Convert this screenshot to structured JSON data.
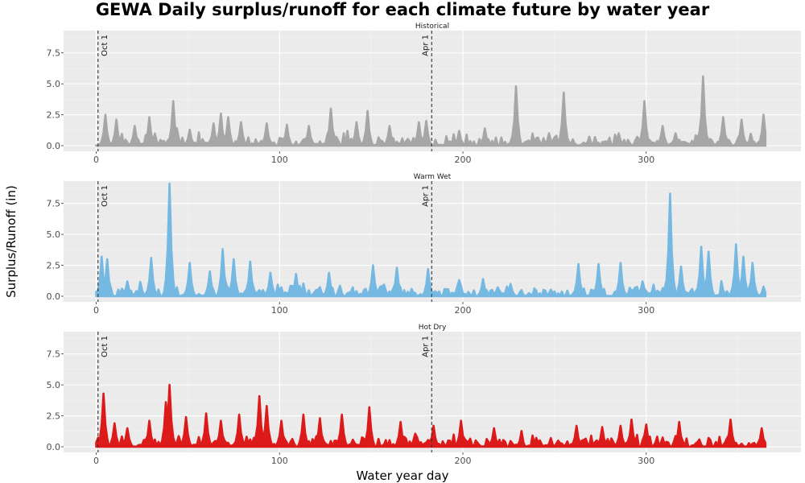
{
  "chart_data": {
    "type": "area",
    "title": "GEWA Daily surplus/runoff for each climate future by water year",
    "xlabel": "Water year day",
    "ylabel": "Surplus/Runoff (in)",
    "xlim": [
      0,
      366
    ],
    "ylim": [
      0,
      9.3
    ],
    "x_ticks": [
      0,
      100,
      200,
      300
    ],
    "y_ticks": [
      0.0,
      2.5,
      5.0,
      7.5
    ],
    "grid": true,
    "reference_lines": [
      {
        "x": 1,
        "label": "Oct 1"
      },
      {
        "x": 183,
        "label": "Apr 1"
      }
    ],
    "panels": [
      {
        "name": "Historical",
        "color": "#a6a6a6",
        "peaks": [
          {
            "x": 5,
            "y": 2.5
          },
          {
            "x": 11,
            "y": 2.1
          },
          {
            "x": 21,
            "y": 1.6
          },
          {
            "x": 29,
            "y": 2.3
          },
          {
            "x": 42,
            "y": 3.6
          },
          {
            "x": 51,
            "y": 1.3
          },
          {
            "x": 64,
            "y": 1.8
          },
          {
            "x": 68,
            "y": 2.6
          },
          {
            "x": 72,
            "y": 2.3
          },
          {
            "x": 79,
            "y": 1.9
          },
          {
            "x": 93,
            "y": 1.8
          },
          {
            "x": 104,
            "y": 1.7
          },
          {
            "x": 116,
            "y": 1.6
          },
          {
            "x": 128,
            "y": 3.0
          },
          {
            "x": 142,
            "y": 1.9
          },
          {
            "x": 148,
            "y": 2.8
          },
          {
            "x": 160,
            "y": 1.6
          },
          {
            "x": 176,
            "y": 1.9
          },
          {
            "x": 180,
            "y": 2.0
          },
          {
            "x": 198,
            "y": 1.2
          },
          {
            "x": 212,
            "y": 1.4
          },
          {
            "x": 229,
            "y": 4.8
          },
          {
            "x": 247,
            "y": 1.0
          },
          {
            "x": 255,
            "y": 4.3
          },
          {
            "x": 285,
            "y": 1.0
          },
          {
            "x": 299,
            "y": 3.6
          },
          {
            "x": 309,
            "y": 1.6
          },
          {
            "x": 316,
            "y": 1.0
          },
          {
            "x": 331,
            "y": 5.6
          },
          {
            "x": 342,
            "y": 2.3
          },
          {
            "x": 352,
            "y": 2.1
          },
          {
            "x": 364,
            "y": 2.5
          }
        ]
      },
      {
        "name": "Warm Wet",
        "color": "#75b8e2",
        "peaks": [
          {
            "x": 3,
            "y": 3.2
          },
          {
            "x": 6,
            "y": 3.0
          },
          {
            "x": 17,
            "y": 1.2
          },
          {
            "x": 30,
            "y": 3.1
          },
          {
            "x": 40,
            "y": 9.1
          },
          {
            "x": 51,
            "y": 2.7
          },
          {
            "x": 62,
            "y": 2.0
          },
          {
            "x": 69,
            "y": 3.8
          },
          {
            "x": 75,
            "y": 3.0
          },
          {
            "x": 84,
            "y": 2.8
          },
          {
            "x": 95,
            "y": 1.9
          },
          {
            "x": 109,
            "y": 1.8
          },
          {
            "x": 127,
            "y": 1.9
          },
          {
            "x": 151,
            "y": 2.5
          },
          {
            "x": 164,
            "y": 2.3
          },
          {
            "x": 181,
            "y": 2.2
          },
          {
            "x": 198,
            "y": 1.3
          },
          {
            "x": 211,
            "y": 1.4
          },
          {
            "x": 226,
            "y": 1.0
          },
          {
            "x": 263,
            "y": 2.6
          },
          {
            "x": 274,
            "y": 2.6
          },
          {
            "x": 286,
            "y": 2.7
          },
          {
            "x": 298,
            "y": 1.2
          },
          {
            "x": 313,
            "y": 8.3
          },
          {
            "x": 319,
            "y": 2.4
          },
          {
            "x": 330,
            "y": 4.0
          },
          {
            "x": 334,
            "y": 3.6
          },
          {
            "x": 349,
            "y": 4.2
          },
          {
            "x": 353,
            "y": 3.2
          },
          {
            "x": 358,
            "y": 2.7
          },
          {
            "x": 364,
            "y": 0.6
          }
        ]
      },
      {
        "name": "Hot Dry",
        "color": "#dd1a1a",
        "peaks": [
          {
            "x": 4,
            "y": 4.3
          },
          {
            "x": 10,
            "y": 1.9
          },
          {
            "x": 17,
            "y": 1.5
          },
          {
            "x": 29,
            "y": 2.1
          },
          {
            "x": 38,
            "y": 3.6
          },
          {
            "x": 40,
            "y": 5.0
          },
          {
            "x": 49,
            "y": 2.4
          },
          {
            "x": 60,
            "y": 2.7
          },
          {
            "x": 68,
            "y": 2.1
          },
          {
            "x": 78,
            "y": 2.6
          },
          {
            "x": 89,
            "y": 4.1
          },
          {
            "x": 93,
            "y": 3.3
          },
          {
            "x": 101,
            "y": 2.1
          },
          {
            "x": 113,
            "y": 2.6
          },
          {
            "x": 122,
            "y": 2.3
          },
          {
            "x": 134,
            "y": 2.6
          },
          {
            "x": 149,
            "y": 3.2
          },
          {
            "x": 166,
            "y": 2.0
          },
          {
            "x": 184,
            "y": 1.7
          },
          {
            "x": 199,
            "y": 2.1
          },
          {
            "x": 217,
            "y": 1.5
          },
          {
            "x": 262,
            "y": 1.7
          },
          {
            "x": 276,
            "y": 1.6
          },
          {
            "x": 286,
            "y": 1.7
          },
          {
            "x": 292,
            "y": 2.2
          },
          {
            "x": 300,
            "y": 1.8
          },
          {
            "x": 318,
            "y": 2.0
          },
          {
            "x": 346,
            "y": 2.2
          },
          {
            "x": 363,
            "y": 1.5
          }
        ]
      }
    ]
  }
}
